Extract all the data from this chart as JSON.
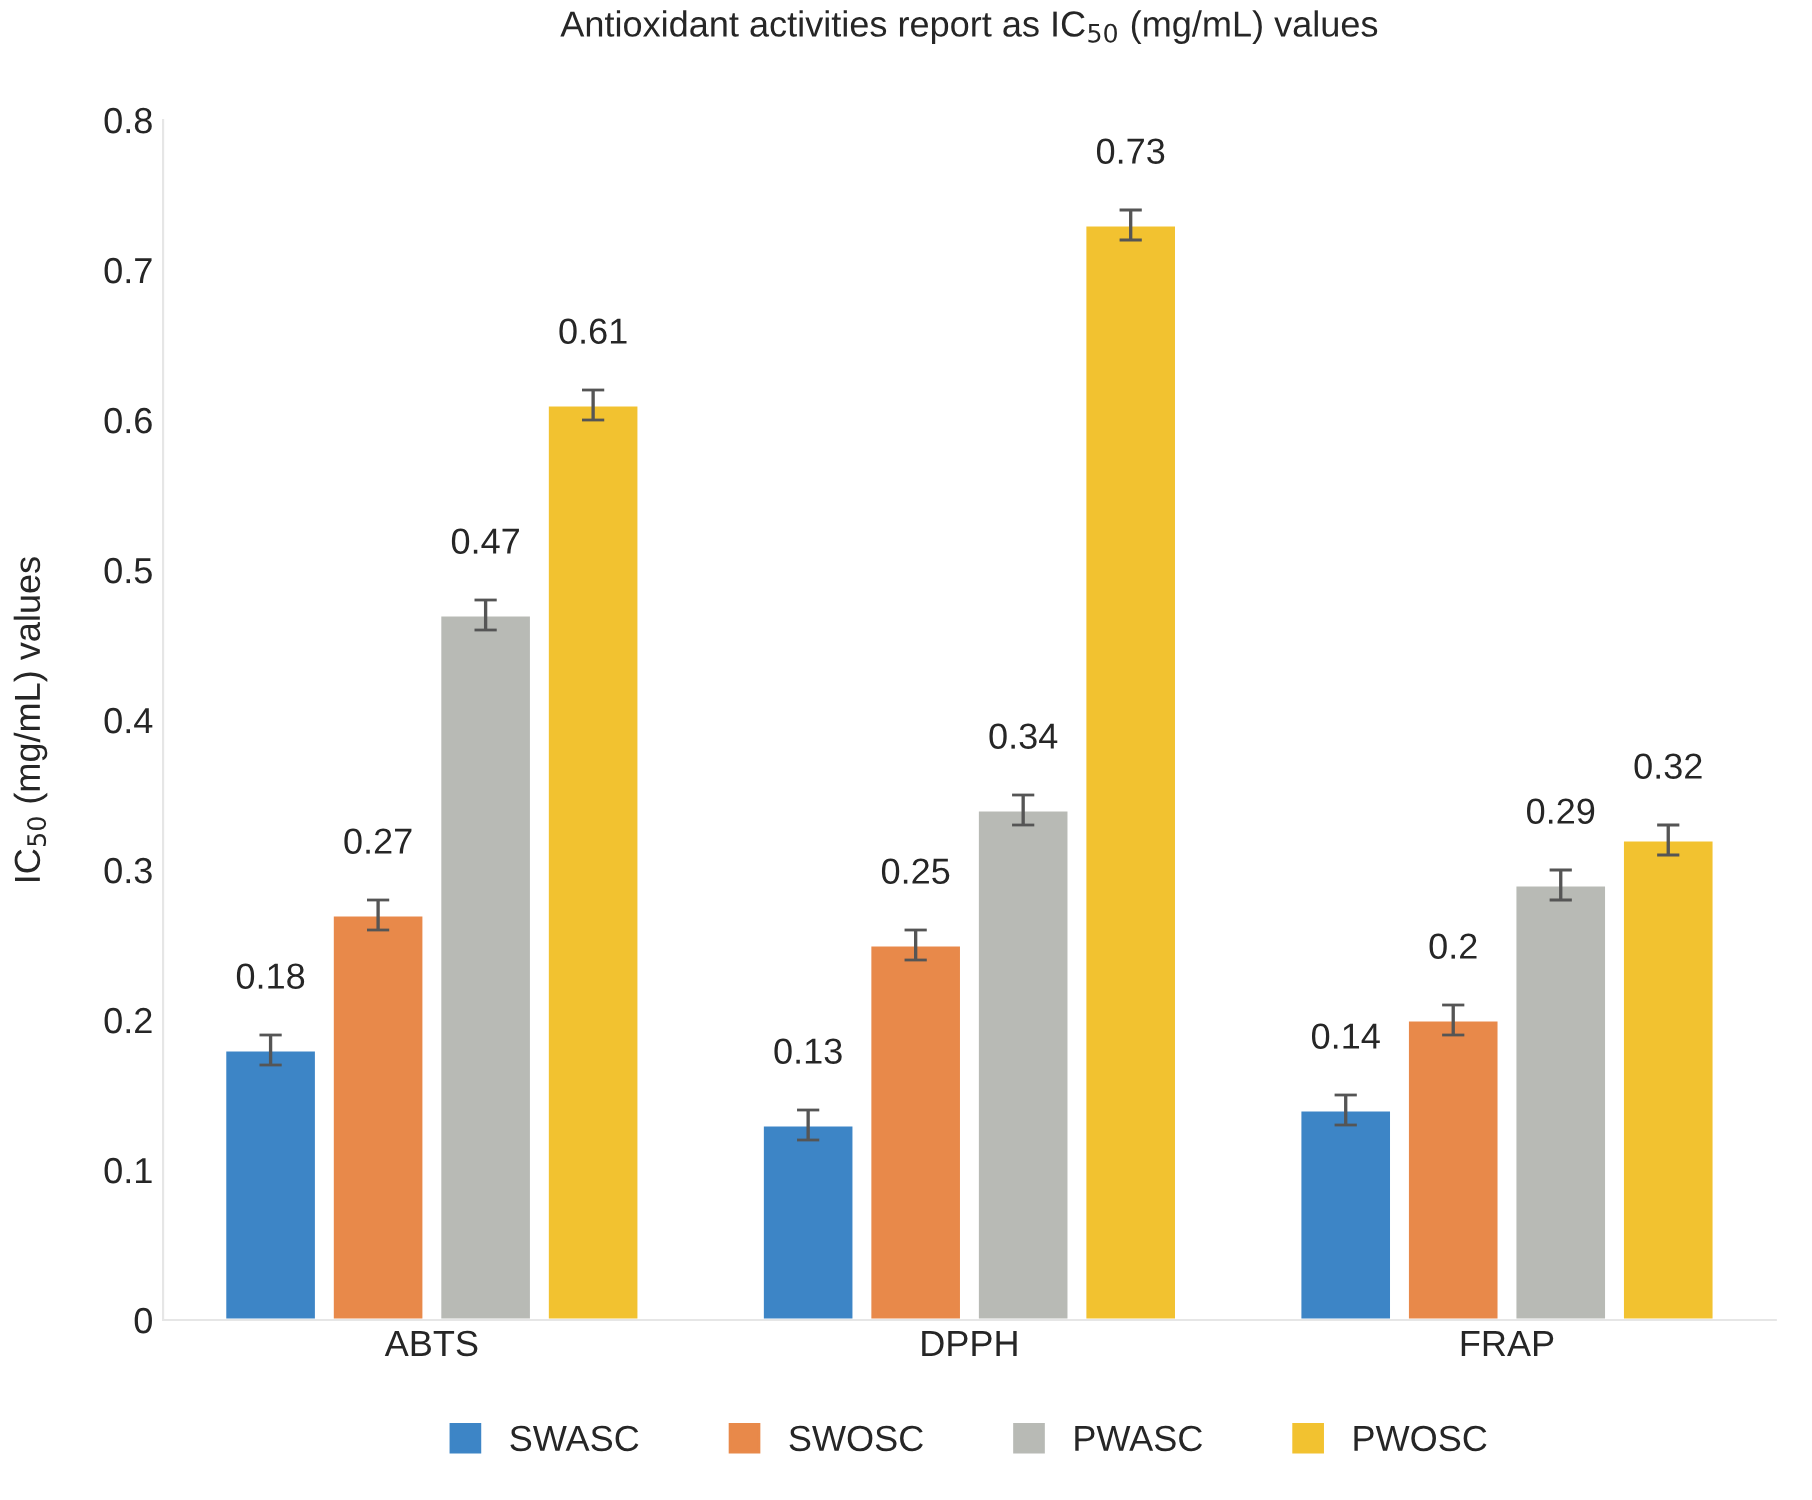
{
  "chart_data": {
    "type": "bar",
    "title": "Antioxidant activities report as IC$_{50}$ (mg/mL) values",
    "ylabel": "IC$_{50}$ (mg/mL) values",
    "categories": [
      "ABTS",
      "DPPH",
      "FRAP"
    ],
    "series": [
      {
        "name": "SWASC",
        "color": "#3d85c6",
        "values": [
          0.18,
          0.13,
          0.14
        ],
        "errors": [
          0.01,
          0.01,
          0.01
        ]
      },
      {
        "name": "SWOSC",
        "color": "#e8894a",
        "values": [
          0.27,
          0.25,
          0.2
        ],
        "errors": [
          0.01,
          0.01,
          0.01
        ]
      },
      {
        "name": "PWASC",
        "color": "#b8bab5",
        "values": [
          0.47,
          0.34,
          0.29
        ],
        "errors": [
          0.01,
          0.01,
          0.01
        ]
      },
      {
        "name": "PWOSC",
        "color": "#f2c230",
        "values": [
          0.61,
          0.73,
          0.32
        ],
        "errors": [
          0.01,
          0.01,
          0.01
        ]
      }
    ],
    "ylim": [
      0,
      0.8
    ],
    "yticks": [
      0,
      0.1,
      0.2,
      0.3,
      0.4,
      0.5,
      0.6,
      0.7,
      0.8
    ],
    "data_labels": true,
    "grid": false,
    "legend": "bottom"
  }
}
